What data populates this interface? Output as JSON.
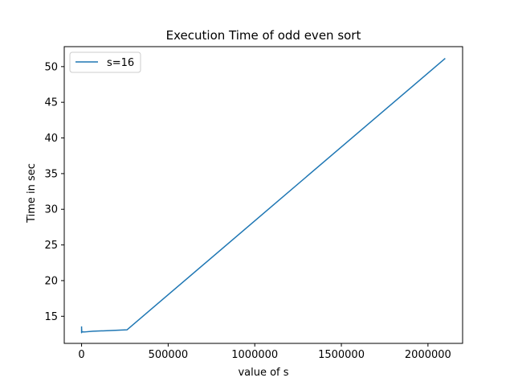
{
  "chart_data": {
    "type": "line",
    "title": "Execution Time of odd even sort",
    "xlabel": "value of s",
    "ylabel": "Time in sec",
    "xlim": [
      -100000,
      2200000
    ],
    "ylim": [
      11.2,
      52.8
    ],
    "xticks": [
      0,
      500000,
      1000000,
      1500000,
      2000000
    ],
    "yticks": [
      15,
      20,
      25,
      30,
      35,
      40,
      45,
      50
    ],
    "xtick_labels": [
      "0",
      "500000",
      "1000000",
      "1500000",
      "2000000"
    ],
    "ytick_labels": [
      "15",
      "20",
      "25",
      "30",
      "35",
      "40",
      "45",
      "50"
    ],
    "grid": false,
    "legend_position": "top-left",
    "series": [
      {
        "name": "s=16",
        "color": "#1f77b4",
        "x": [
          16,
          64,
          256,
          1024,
          4096,
          16384,
          65536,
          262144,
          2097152
        ],
        "y": [
          13.5,
          12.7,
          13.3,
          12.9,
          12.8,
          12.8,
          12.9,
          13.1,
          51.1
        ]
      }
    ]
  }
}
